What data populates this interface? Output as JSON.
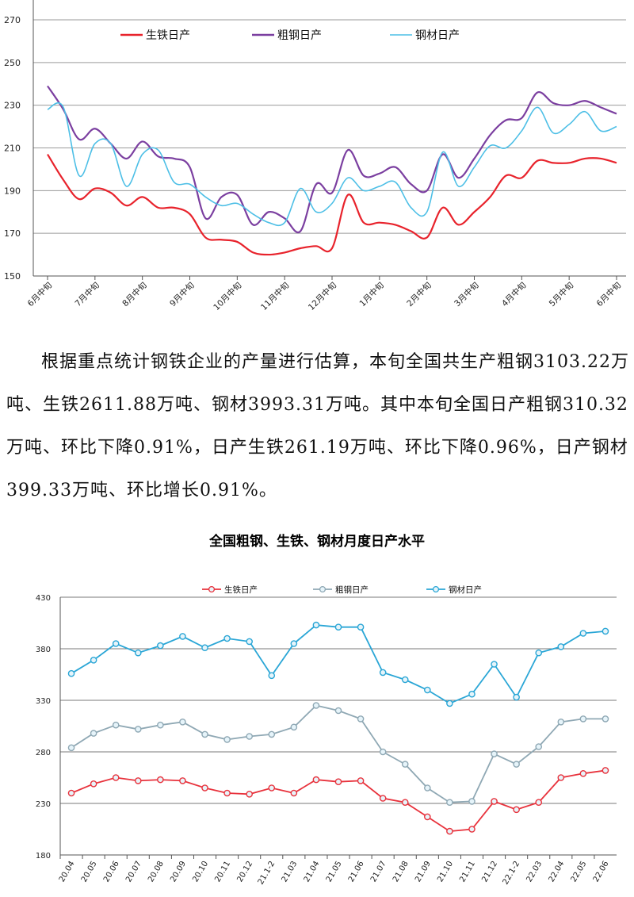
{
  "paragraph": "根据重点统计钢铁企业的产量进行估算，本旬全国共生产粗钢3103.22万吨、生铁2611.88万吨、钢材3993.31万吨。其中本旬全国日产粗钢310.32万吨、环比下降0.91%，日产生铁261.19万吨、环比下降0.96%，日产钢材399.33万吨、环比增长0.91%。",
  "chart_data": [
    {
      "type": "line",
      "title": "",
      "xlabel": "",
      "ylabel": "",
      "ylim": [
        150,
        270
      ],
      "yticks": [
        150,
        170,
        190,
        210,
        230,
        250,
        270
      ],
      "grid": true,
      "legend_position": "top",
      "x_tick_labels": [
        "6月中旬",
        "7月中旬",
        "8月中旬",
        "9月中旬",
        "10月中旬",
        "11月中旬",
        "12月中旬",
        "1月中旬",
        "2月中旬",
        "3月中旬",
        "4月中旬",
        "5月中旬",
        "6月中旬"
      ],
      "x_range": [
        0,
        36
      ],
      "series": [
        {
          "name": "生铁日产",
          "color": "#e8232c",
          "values": [
            207,
            195,
            186,
            191,
            189,
            183,
            187,
            182,
            182,
            179,
            168,
            167,
            166,
            161,
            160,
            161,
            163,
            164,
            163,
            188,
            175,
            175,
            174,
            171,
            168,
            182,
            174,
            180,
            187,
            197,
            196,
            204,
            203,
            203,
            205,
            205,
            203
          ]
        },
        {
          "name": "粗钢日产",
          "color": "#7b3fa0",
          "values": [
            239,
            228,
            214,
            219,
            212,
            205,
            213,
            206,
            205,
            201,
            177,
            187,
            188,
            174,
            180,
            177,
            171,
            193,
            189,
            209,
            197,
            198,
            201,
            193,
            190,
            207,
            196,
            205,
            216,
            223,
            224,
            236,
            231,
            230,
            232,
            229,
            226
          ]
        },
        {
          "name": "钢材日产",
          "color": "#4dbfe6",
          "values": [
            228,
            229,
            197,
            212,
            212,
            192,
            207,
            209,
            194,
            193,
            187,
            183,
            184,
            179,
            175,
            175,
            191,
            180,
            184,
            196,
            190,
            192,
            194,
            182,
            180,
            208,
            192,
            201,
            211,
            210,
            218,
            229,
            217,
            221,
            227,
            218,
            220
          ]
        }
      ]
    },
    {
      "type": "line",
      "title": "全国粗钢、生铁、钢材月度日产水平",
      "xlabel": "",
      "ylabel": "",
      "ylim": [
        180,
        430
      ],
      "yticks": [
        180,
        230,
        280,
        330,
        380,
        430
      ],
      "grid": true,
      "legend_position": "top",
      "categories": [
        "20.04",
        "20.05",
        "20.06",
        "20.07",
        "20.08",
        "20.09",
        "20.10",
        "20.11",
        "20.12",
        "21.1-2",
        "21.03",
        "21.04",
        "21.05",
        "21.06",
        "21.07",
        "21.08",
        "21.09",
        "21.10",
        "21.11",
        "21.12",
        "22.1-2",
        "22.03",
        "22.04",
        "22.05",
        "22.06"
      ],
      "series": [
        {
          "name": "生铁日产",
          "color": "#e8323c",
          "values": [
            240,
            249,
            255,
            252,
            253,
            252,
            245,
            240,
            239,
            245,
            240,
            253,
            251,
            252,
            235,
            231,
            217,
            203,
            205,
            232,
            224,
            231,
            255,
            259,
            262
          ]
        },
        {
          "name": "粗钢日产",
          "color": "#8fa8b4",
          "values": [
            284,
            298,
            306,
            302,
            306,
            309,
            297,
            292,
            295,
            297,
            304,
            325,
            320,
            312,
            280,
            268,
            245,
            231,
            232,
            278,
            268,
            285,
            309,
            312,
            312
          ]
        },
        {
          "name": "钢材日产",
          "color": "#2aa6d6",
          "values": [
            356,
            369,
            385,
            376,
            383,
            392,
            381,
            390,
            387,
            354,
            385,
            403,
            401,
            401,
            357,
            350,
            340,
            327,
            336,
            365,
            333,
            376,
            382,
            395,
            397
          ]
        }
      ]
    }
  ]
}
